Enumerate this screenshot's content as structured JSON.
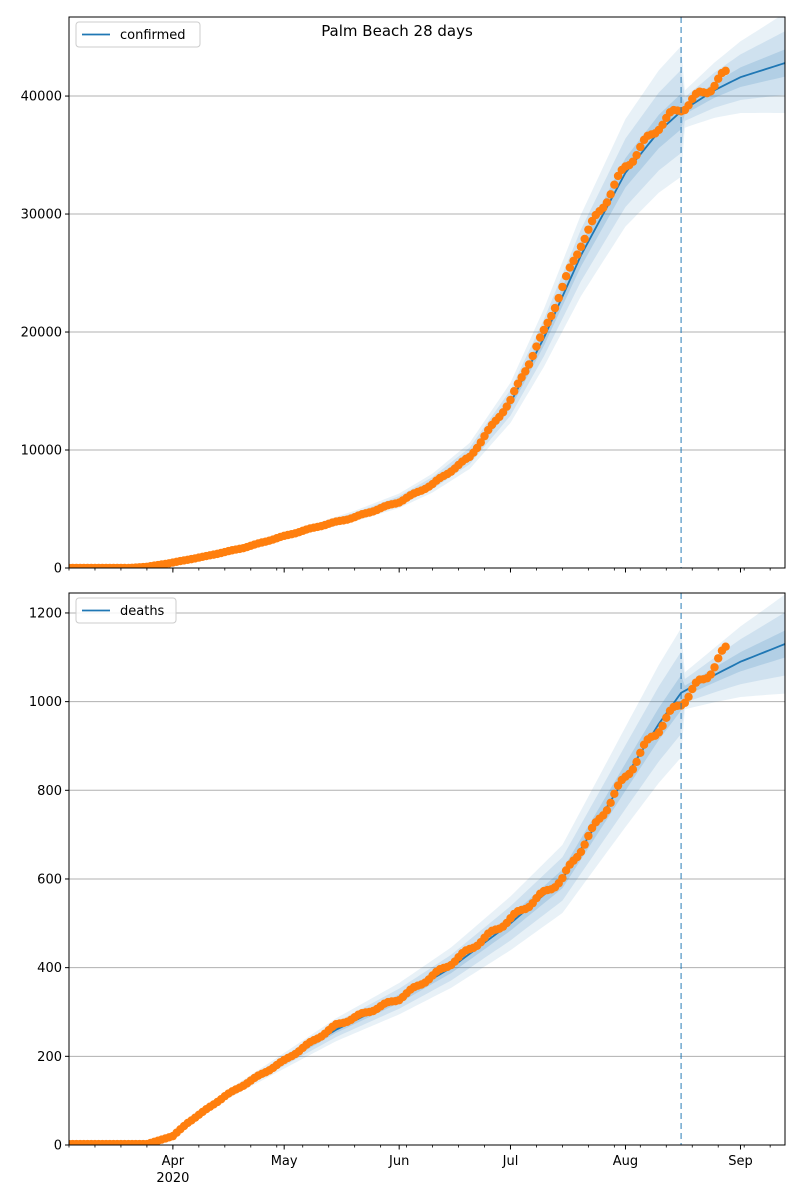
{
  "title": "Palm Beach 28 days",
  "colors": {
    "model": "#1f77b4",
    "observed": "#ff7f0e",
    "band": "#1f77b4",
    "grid": "#b0b0b0"
  },
  "x_axis": {
    "months": [
      {
        "label": "Apr",
        "date": "2020-04-01"
      },
      {
        "label": "May",
        "date": "2020-05-01"
      },
      {
        "label": "Jun",
        "date": "2020-06-01"
      },
      {
        "label": "Jul",
        "date": "2020-07-01"
      },
      {
        "label": "Aug",
        "date": "2020-08-01"
      },
      {
        "label": "Sep",
        "date": "2020-09-01"
      }
    ],
    "year_label": "2020",
    "range": [
      "2020-03-04",
      "2020-09-13"
    ]
  },
  "forecast_start": "2020-08-16",
  "chart_data": [
    {
      "type": "line",
      "name": "confirmed",
      "legend": "upper-left",
      "grid": "horizontal",
      "ylim": [
        0,
        46700
      ],
      "yticks": [
        0,
        10000,
        20000,
        30000,
        40000
      ],
      "model_points": [
        [
          "2020-03-04",
          0
        ],
        [
          "2020-03-20",
          0
        ],
        [
          "2020-03-31",
          300
        ],
        [
          "2020-04-10",
          1000
        ],
        [
          "2020-04-20",
          1700
        ],
        [
          "2020-05-01",
          2700
        ],
        [
          "2020-05-10",
          3500
        ],
        [
          "2020-05-20",
          4400
        ],
        [
          "2020-06-01",
          5700
        ],
        [
          "2020-06-10",
          7200
        ],
        [
          "2020-06-20",
          9500
        ],
        [
          "2020-07-01",
          14000
        ],
        [
          "2020-07-10",
          19500
        ],
        [
          "2020-07-20",
          26500
        ],
        [
          "2020-08-01",
          33500
        ],
        [
          "2020-08-10",
          37000
        ],
        [
          "2020-08-16",
          38700
        ],
        [
          "2020-08-25",
          40500
        ],
        [
          "2020-09-01",
          41600
        ],
        [
          "2020-09-13",
          42800
        ]
      ],
      "band_rel": [
        0.03,
        0.07,
        0.11
      ],
      "observed_points": [
        [
          "2020-03-04",
          0
        ],
        [
          "2020-03-20",
          0
        ],
        [
          "2020-03-25",
          100
        ],
        [
          "2020-03-31",
          400
        ],
        [
          "2020-04-10",
          1000
        ],
        [
          "2020-04-20",
          1700
        ],
        [
          "2020-05-01",
          2700
        ],
        [
          "2020-05-10",
          3500
        ],
        [
          "2020-05-20",
          4300
        ],
        [
          "2020-06-01",
          5600
        ],
        [
          "2020-06-10",
          7100
        ],
        [
          "2020-06-20",
          9400
        ],
        [
          "2020-07-01",
          14200
        ],
        [
          "2020-07-10",
          20000
        ],
        [
          "2020-07-20",
          27500
        ],
        [
          "2020-08-01",
          34000
        ],
        [
          "2020-08-10",
          37500
        ],
        [
          "2020-08-16",
          39000
        ],
        [
          "2020-08-20",
          39800
        ],
        [
          "2020-08-28",
          41800
        ]
      ],
      "observed_end": "2020-08-28"
    },
    {
      "type": "line",
      "name": "deaths",
      "legend": "upper-left",
      "grid": "horizontal",
      "ylim": [
        0,
        1245
      ],
      "yticks": [
        0,
        200,
        400,
        600,
        800,
        1000,
        1200
      ],
      "model_points": [
        [
          "2020-03-04",
          0
        ],
        [
          "2020-03-25",
          0
        ],
        [
          "2020-04-01",
          25
        ],
        [
          "2020-04-15",
          110
        ],
        [
          "2020-05-01",
          190
        ],
        [
          "2020-05-15",
          260
        ],
        [
          "2020-06-01",
          330
        ],
        [
          "2020-06-15",
          400
        ],
        [
          "2020-07-01",
          500
        ],
        [
          "2020-07-15",
          600
        ],
        [
          "2020-08-01",
          830
        ],
        [
          "2020-08-10",
          950
        ],
        [
          "2020-08-16",
          1020
        ],
        [
          "2020-08-25",
          1060
        ],
        [
          "2020-09-01",
          1090
        ],
        [
          "2020-09-13",
          1130
        ]
      ],
      "band_rel": [
        0.03,
        0.07,
        0.11
      ],
      "observed_points": [
        [
          "2020-03-04",
          2
        ],
        [
          "2020-03-25",
          2
        ],
        [
          "2020-04-01",
          20
        ],
        [
          "2020-04-05",
          50
        ],
        [
          "2020-04-15",
          110
        ],
        [
          "2020-05-01",
          190
        ],
        [
          "2020-05-15",
          270
        ],
        [
          "2020-06-01",
          330
        ],
        [
          "2020-06-15",
          410
        ],
        [
          "2020-07-01",
          510
        ],
        [
          "2020-07-15",
          600
        ],
        [
          "2020-08-01",
          830
        ],
        [
          "2020-08-08",
          920
        ],
        [
          "2020-08-15",
          990
        ],
        [
          "2020-08-22",
          1050
        ],
        [
          "2020-08-28",
          1115
        ]
      ],
      "observed_end": "2020-08-28"
    }
  ]
}
